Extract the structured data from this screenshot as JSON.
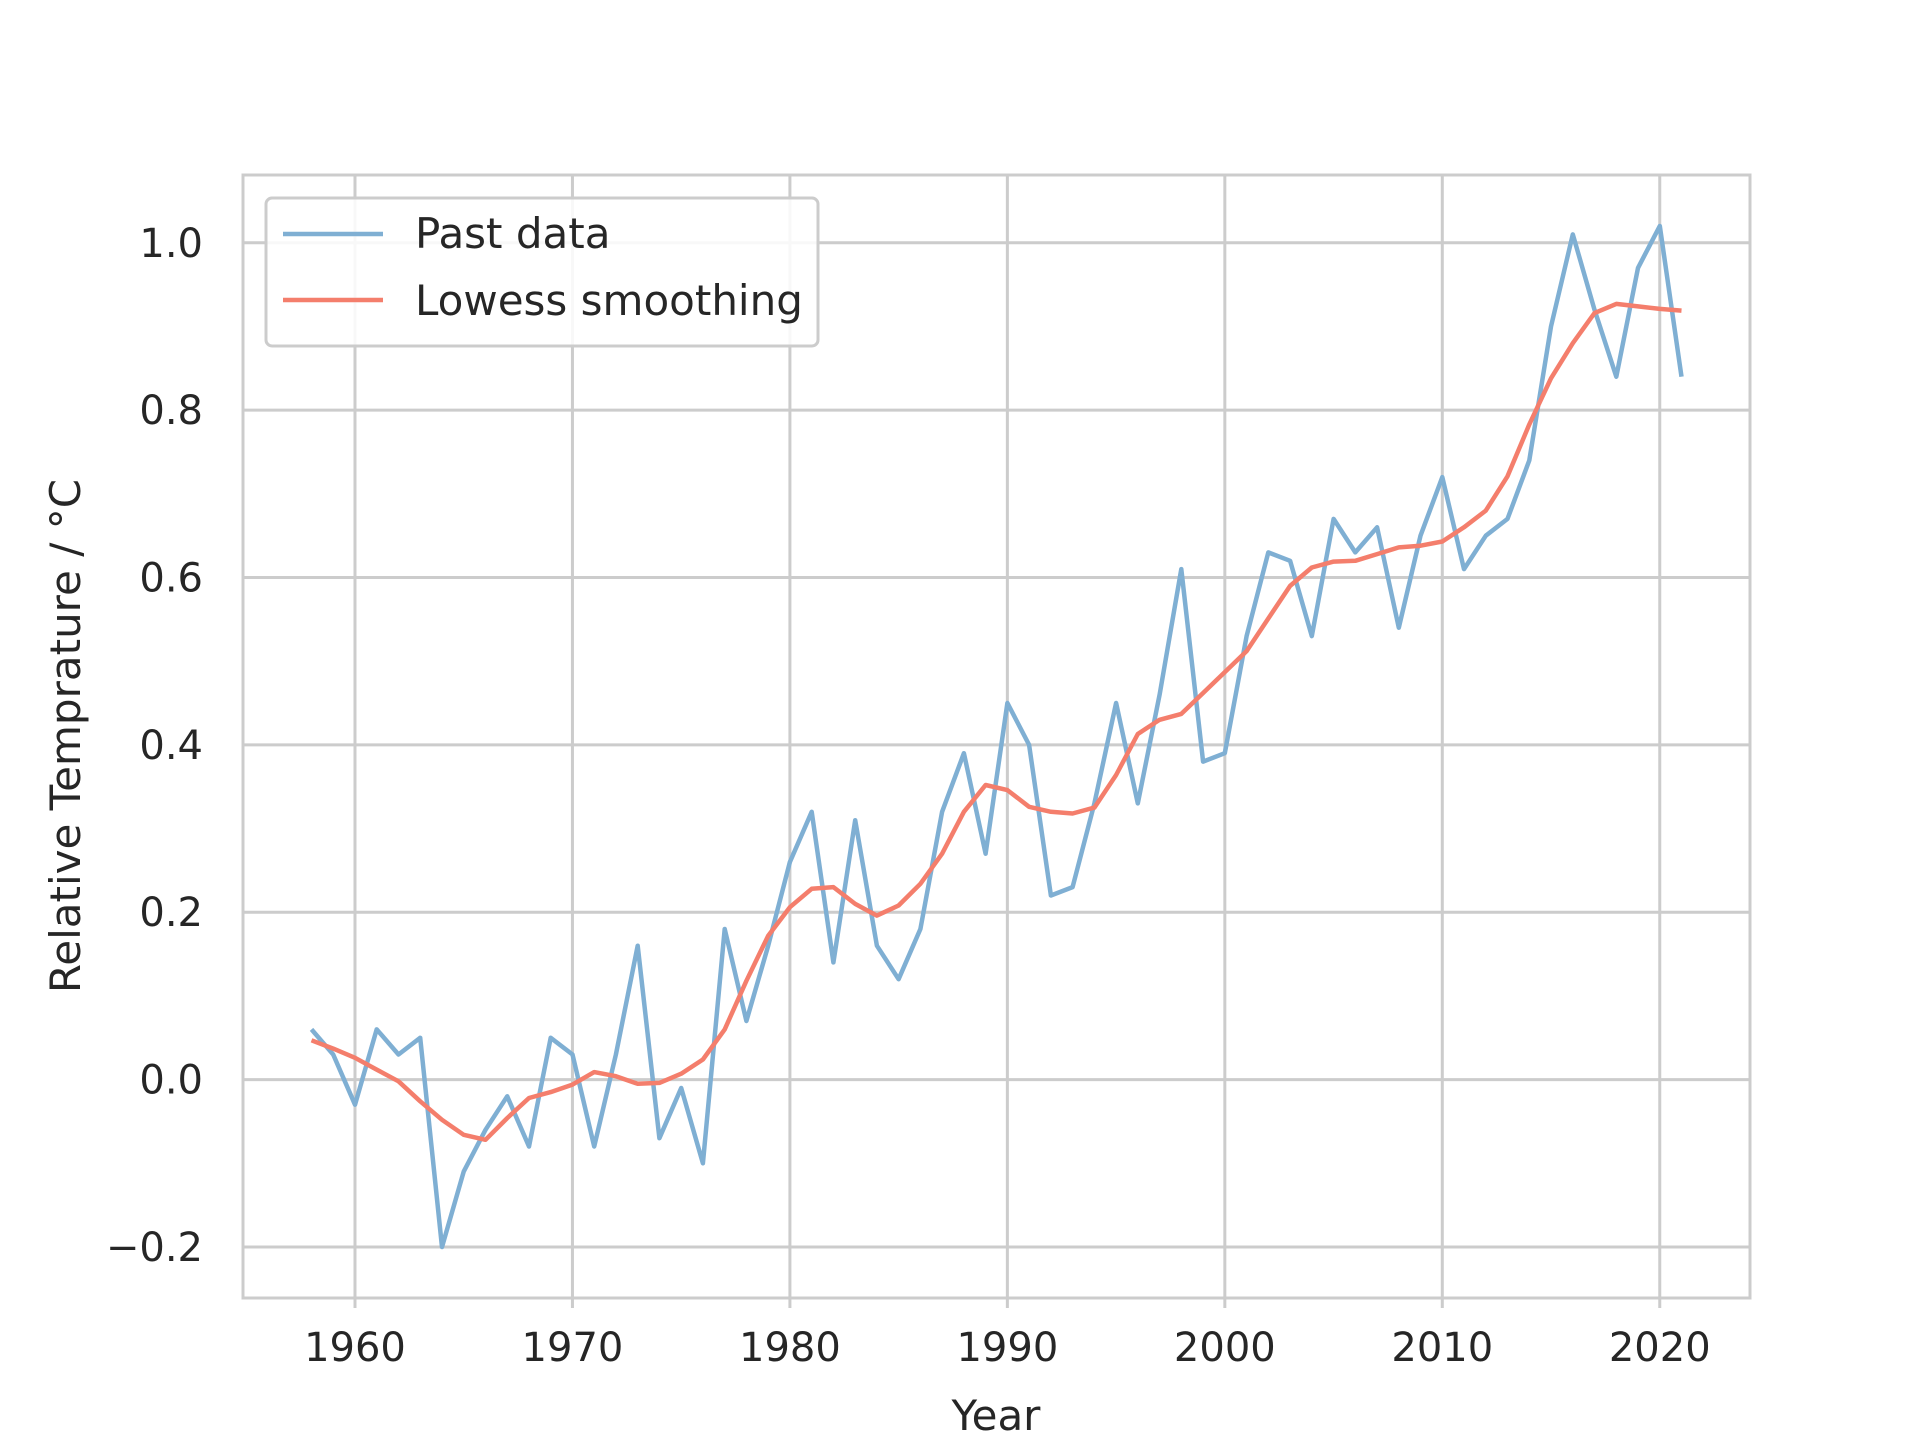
{
  "chart_data": {
    "type": "line",
    "title": "",
    "xlabel": "Year",
    "ylabel": "Relative Temprature / °C",
    "xlim": [
      1954.85,
      2024.15
    ],
    "ylim": [
      -0.261,
      1.081
    ],
    "xticks": [
      1960,
      1970,
      1980,
      1990,
      2000,
      2010,
      2020
    ],
    "xtick_labels": [
      "1960",
      "1970",
      "1980",
      "1990",
      "2000",
      "2010",
      "2020"
    ],
    "yticks": [
      -0.2,
      0.0,
      0.2,
      0.4,
      0.6,
      0.8,
      1.0
    ],
    "ytick_labels": [
      "−0.2",
      "0.0",
      "0.2",
      "0.4",
      "0.6",
      "0.8",
      "1.0"
    ],
    "grid": true,
    "legend_position": "top-left",
    "x": [
      1958,
      1959,
      1960,
      1961,
      1962,
      1963,
      1964,
      1965,
      1966,
      1967,
      1968,
      1969,
      1970,
      1971,
      1972,
      1973,
      1974,
      1975,
      1976,
      1977,
      1978,
      1979,
      1980,
      1981,
      1982,
      1983,
      1984,
      1985,
      1986,
      1987,
      1988,
      1989,
      1990,
      1991,
      1992,
      1993,
      1994,
      1995,
      1996,
      1997,
      1998,
      1999,
      2000,
      2001,
      2002,
      2003,
      2004,
      2005,
      2006,
      2007,
      2008,
      2009,
      2010,
      2011,
      2012,
      2013,
      2014,
      2015,
      2016,
      2017,
      2018,
      2019,
      2020,
      2021
    ],
    "series": [
      {
        "name": "Past data",
        "color": "#7fafd3",
        "values": [
          0.06,
          0.03,
          -0.03,
          0.06,
          0.03,
          0.05,
          -0.2,
          -0.11,
          -0.06,
          -0.02,
          -0.08,
          0.05,
          0.03,
          -0.08,
          0.03,
          0.16,
          -0.07,
          -0.01,
          -0.1,
          0.18,
          0.07,
          0.16,
          0.26,
          0.32,
          0.14,
          0.31,
          0.16,
          0.12,
          0.18,
          0.32,
          0.39,
          0.27,
          0.45,
          0.4,
          0.22,
          0.23,
          0.33,
          0.45,
          0.33,
          0.46,
          0.61,
          0.38,
          0.39,
          0.53,
          0.63,
          0.62,
          0.53,
          0.67,
          0.63,
          0.66,
          0.54,
          0.65,
          0.72,
          0.61,
          0.65,
          0.67,
          0.74,
          0.9,
          1.01,
          0.92,
          0.84,
          0.97,
          1.02,
          0.84
        ]
      },
      {
        "name": "Lowess smoothing",
        "color": "#f47e6c",
        "values": [
          0.047,
          0.037,
          0.026,
          0.012,
          -0.002,
          -0.026,
          -0.048,
          -0.066,
          -0.072,
          -0.046,
          -0.022,
          -0.015,
          -0.006,
          0.009,
          0.004,
          -0.005,
          -0.004,
          0.007,
          0.024,
          0.06,
          0.118,
          0.172,
          0.206,
          0.228,
          0.23,
          0.21,
          0.196,
          0.208,
          0.234,
          0.27,
          0.32,
          0.352,
          0.346,
          0.326,
          0.32,
          0.318,
          0.325,
          0.364,
          0.413,
          0.43,
          0.437,
          0.462,
          0.487,
          0.512,
          0.551,
          0.59,
          0.612,
          0.619,
          0.62,
          0.628,
          0.636,
          0.638,
          0.643,
          0.66,
          0.68,
          0.721,
          0.783,
          0.838,
          0.88,
          0.916,
          0.927,
          0.924,
          0.921,
          0.919
        ]
      }
    ]
  }
}
